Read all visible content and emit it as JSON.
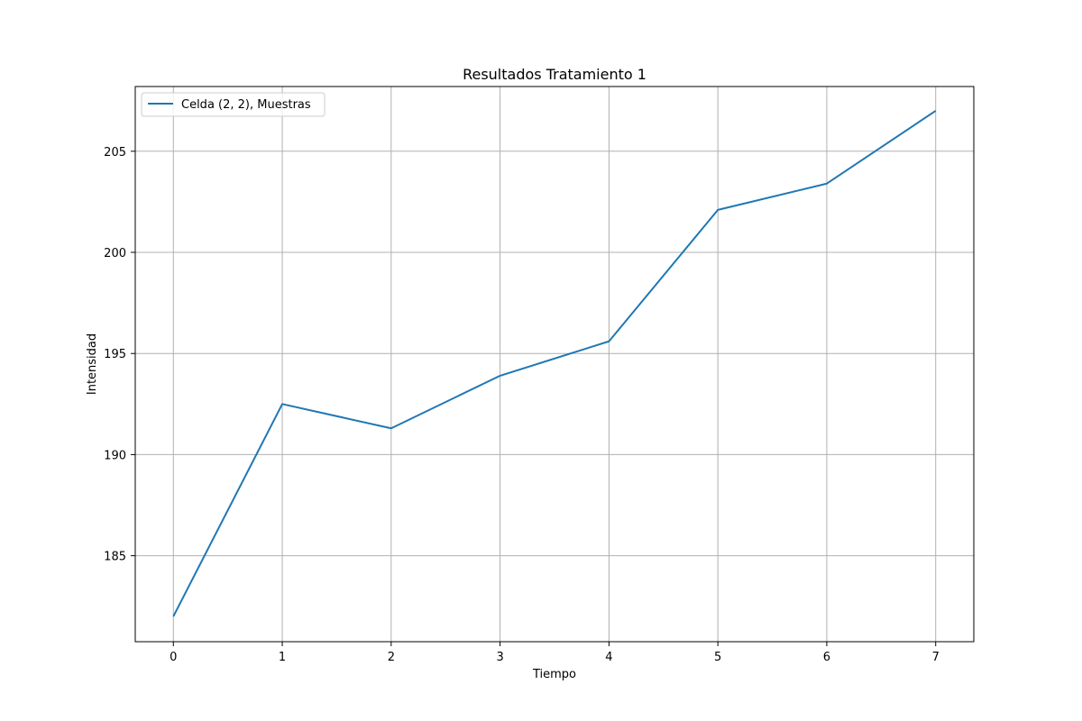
{
  "chart_data": {
    "type": "line",
    "title": "Resultados Tratamiento 1",
    "xlabel": "Tiempo",
    "ylabel": "Intensidad",
    "x": [
      0,
      1,
      2,
      3,
      4,
      5,
      6,
      7
    ],
    "x_ticks": [
      "0",
      "1",
      "2",
      "3",
      "4",
      "5",
      "6",
      "7"
    ],
    "y_ticks": [
      "185",
      "190",
      "195",
      "200",
      "205"
    ],
    "xlim": [
      -0.35,
      7.35
    ],
    "ylim": [
      180.75,
      208.2
    ],
    "grid": true,
    "legend_position": "upper-left",
    "series": [
      {
        "name": "Celda (2, 2), Muestras",
        "color": "#1f77b4",
        "values": [
          182.0,
          192.5,
          191.3,
          193.9,
          195.6,
          202.1,
          203.4,
          207.0
        ]
      }
    ]
  }
}
